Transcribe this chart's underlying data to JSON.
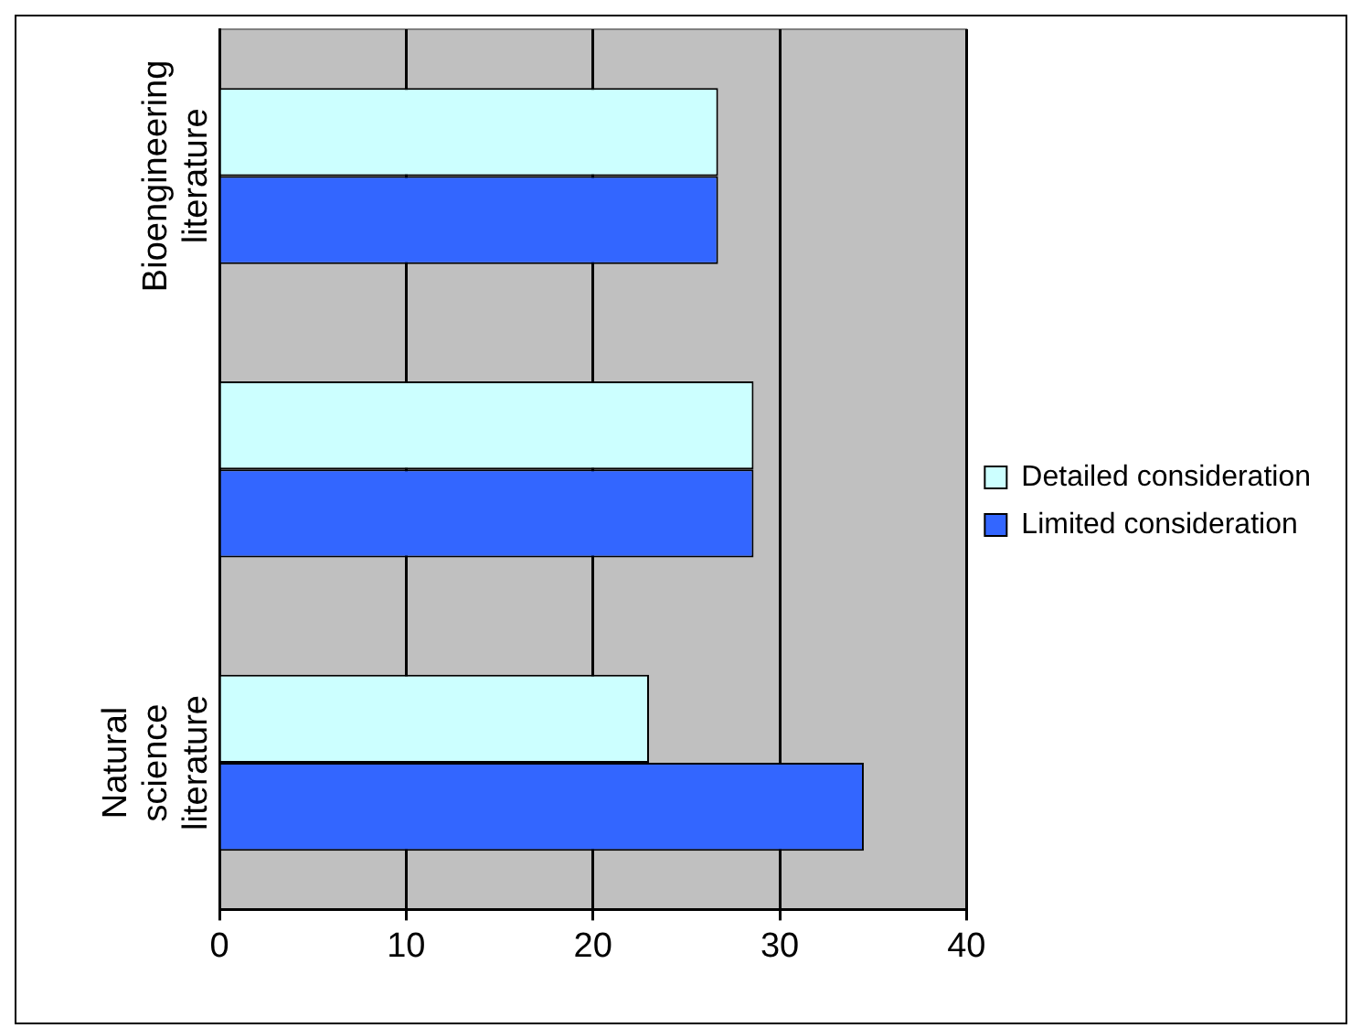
{
  "chart_data": {
    "type": "bar",
    "orientation": "horizontal",
    "categories": [
      "Bioengineering literature",
      null,
      "Natural science literature"
    ],
    "series": [
      {
        "name": "Detailed consideration",
        "color": "#ccffff",
        "values": [
          26.7,
          28.6,
          23.0
        ]
      },
      {
        "name": "Limited consideration",
        "color": "#3366ff",
        "values": [
          26.7,
          28.6,
          34.5
        ]
      }
    ],
    "xlim": [
      0,
      40
    ],
    "xticks": [
      0,
      10,
      20,
      30,
      40
    ],
    "grid": "x",
    "legend": "right"
  }
}
